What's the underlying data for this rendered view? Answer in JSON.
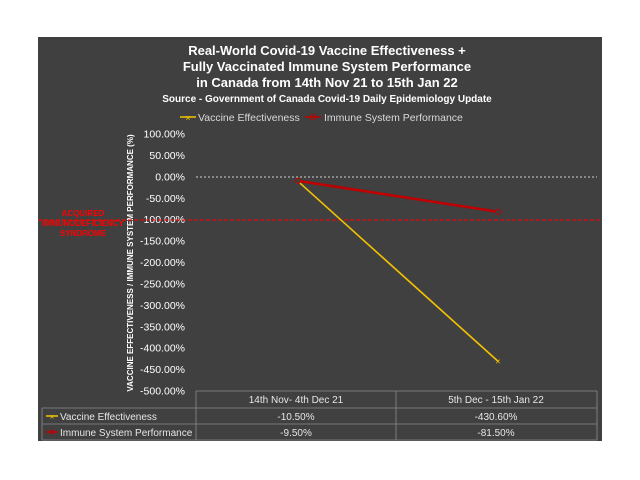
{
  "chart_data": {
    "type": "line",
    "title_lines": [
      "Real-World Covid-19 Vaccine Effectiveness +",
      "Fully Vaccinated Immune System Performance",
      "in Canada from 14th Nov 21 to 15th Jan 22"
    ],
    "subtitle": "Source - Government of Canada Covid-19 Daily Epidemiology Update",
    "ylabel": "VACCINE EFFECTIVENESS / IMMUNE SYSTEM PERFORMANCE (%)",
    "categories": [
      "14th Nov-  4th Dec 21",
      "5th Dec - 15th Jan 22"
    ],
    "ylim": [
      -500,
      100
    ],
    "y_ticks": [
      "100.00%",
      "50.00%",
      "0.00%",
      "-50.00%",
      "-100.00%",
      "-150.00%",
      "-200.00%",
      "-250.00%",
      "-300.00%",
      "-350.00%",
      "-400.00%",
      "-450.00%",
      "-500.00%"
    ],
    "series": [
      {
        "name": "Vaccine Effectiveness",
        "values": [
          -10.5,
          -430.6
        ],
        "labels": [
          "-10.50%",
          "-430.60%"
        ],
        "color": "#f2c200"
      },
      {
        "name": "Immune System Performance",
        "values": [
          -9.5,
          -81.5
        ],
        "labels": [
          "-9.50%",
          "-81.50%"
        ],
        "color": "#c00000"
      }
    ],
    "reference_line": {
      "value": -100,
      "label_lines": [
        "ACQUIRED",
        "IMMUNODEFICIENCY",
        "SYNDROME"
      ],
      "color": "#ff0000"
    },
    "zero_line": {
      "value": 0,
      "style": "dashed"
    },
    "legend_position": "top",
    "grid": false,
    "data_table": true
  },
  "colors": {
    "background": "#404040",
    "page": "#ffffff"
  }
}
